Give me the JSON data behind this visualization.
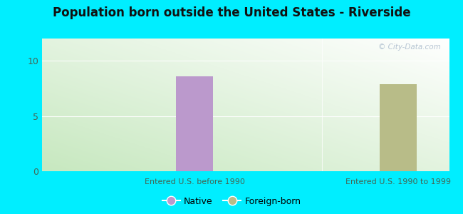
{
  "title": "Population born outside the United States - Riverside",
  "groups": [
    "Entered U.S. before 1990",
    "Entered U.S. 1990 to 1999"
  ],
  "native_values": [
    8.6,
    null
  ],
  "foreign_values": [
    null,
    7.9
  ],
  "native_color": "#bb99cc",
  "foreign_color": "#b8bc88",
  "bg_color": "#00eeff",
  "plot_bg_top": "#e8f5f0",
  "plot_bg_bottom": "#d0ecd8",
  "yticks": [
    0,
    5,
    10
  ],
  "ylim": [
    0,
    12
  ],
  "bar_width": 0.18,
  "legend_labels": [
    "Native",
    "Foreign-born"
  ],
  "watermark": "© City-Data.com"
}
